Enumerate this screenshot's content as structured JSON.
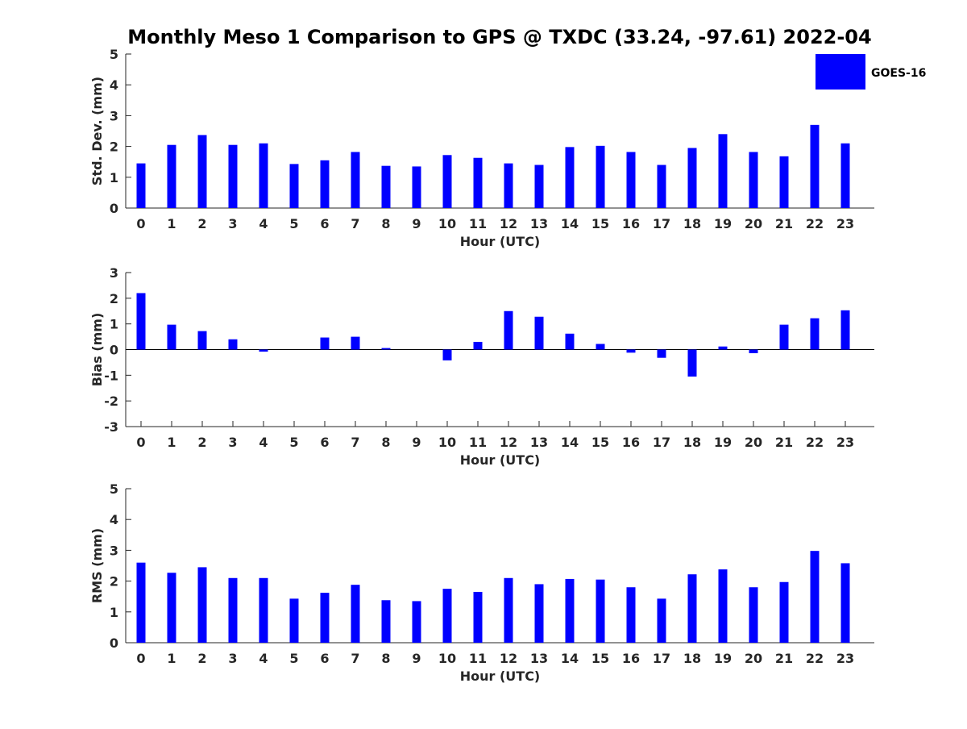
{
  "chart_data": [
    {
      "type": "bar",
      "title": "Monthly Meso 1 Comparison to GPS @ TXDC (33.24, -97.61) 2022-04",
      "xlabel": "Hour (UTC)",
      "ylabel": "Std. Dev. (mm)",
      "ylim": [
        0,
        5
      ],
      "yticks": [
        "0",
        "1",
        "2",
        "3",
        "4",
        "5"
      ],
      "categories": [
        "0",
        "1",
        "2",
        "3",
        "4",
        "5",
        "6",
        "7",
        "8",
        "9",
        "10",
        "11",
        "12",
        "13",
        "14",
        "15",
        "16",
        "17",
        "18",
        "19",
        "20",
        "21",
        "22",
        "23"
      ],
      "series": [
        {
          "name": "GOES-16",
          "color": "#0000ff",
          "values": [
            1.45,
            2.05,
            2.37,
            2.05,
            2.1,
            1.43,
            1.55,
            1.82,
            1.37,
            1.35,
            1.72,
            1.63,
            1.45,
            1.4,
            1.98,
            2.02,
            1.82,
            1.4,
            1.95,
            2.4,
            1.82,
            1.68,
            2.7,
            2.1
          ]
        }
      ],
      "legend": "top-right"
    },
    {
      "type": "bar",
      "xlabel": "Hour (UTC)",
      "ylabel": "Bias (mm)",
      "ylim": [
        -3,
        3
      ],
      "yticks": [
        "-3",
        "-2",
        "-1",
        "0",
        "1",
        "2",
        "3"
      ],
      "categories": [
        "0",
        "1",
        "2",
        "3",
        "4",
        "5",
        "6",
        "7",
        "8",
        "9",
        "10",
        "11",
        "12",
        "13",
        "14",
        "15",
        "16",
        "17",
        "18",
        "19",
        "20",
        "21",
        "22",
        "23"
      ],
      "series": [
        {
          "name": "GOES-16",
          "color": "#0000ff",
          "values": [
            2.2,
            0.97,
            0.72,
            0.4,
            -0.08,
            0.0,
            0.47,
            0.5,
            0.06,
            0.0,
            -0.42,
            0.3,
            1.5,
            1.28,
            0.62,
            0.22,
            -0.12,
            -0.32,
            -1.05,
            0.12,
            -0.14,
            0.97,
            1.22,
            1.53
          ]
        }
      ]
    },
    {
      "type": "bar",
      "xlabel": "Hour (UTC)",
      "ylabel": "RMS (mm)",
      "ylim": [
        0,
        5
      ],
      "yticks": [
        "0",
        "1",
        "2",
        "3",
        "4",
        "5"
      ],
      "categories": [
        "0",
        "1",
        "2",
        "3",
        "4",
        "5",
        "6",
        "7",
        "8",
        "9",
        "10",
        "11",
        "12",
        "13",
        "14",
        "15",
        "16",
        "17",
        "18",
        "19",
        "20",
        "21",
        "22",
        "23"
      ],
      "series": [
        {
          "name": "GOES-16",
          "color": "#0000ff",
          "values": [
            2.6,
            2.27,
            2.45,
            2.1,
            2.1,
            1.43,
            1.62,
            1.88,
            1.38,
            1.35,
            1.75,
            1.65,
            2.1,
            1.9,
            2.07,
            2.05,
            1.8,
            1.43,
            2.22,
            2.38,
            1.8,
            1.97,
            2.98,
            2.58
          ]
        }
      ]
    }
  ]
}
